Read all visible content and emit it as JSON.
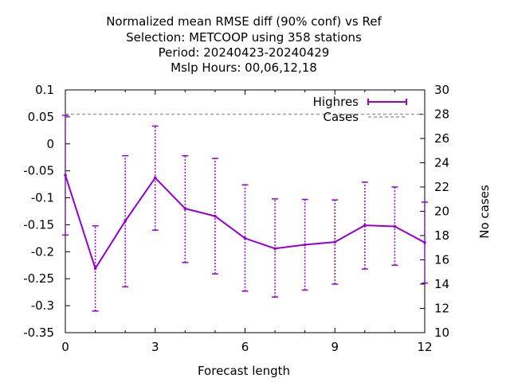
{
  "chart_data": {
    "type": "line",
    "title_lines": [
      "Normalized mean RMSE diff (90% conf) vs Ref",
      "Selection: METCOOP using   358 stations",
      "Period: 20240423-20240429",
      "Mslp   Hours:  00,06,12,18"
    ],
    "xlabel": "Forecast length",
    "ylabel": "",
    "y2label": "No cases",
    "xlim": [
      0,
      12
    ],
    "ylim": [
      -0.35,
      0.1
    ],
    "y2lim": [
      10,
      30
    ],
    "x_ticks": [
      "0",
      "3",
      "6",
      "9",
      "12"
    ],
    "y_ticks": [
      "0.1",
      "0.05",
      "0",
      "-0.05",
      "-0.1",
      "-0.15",
      "-0.2",
      "-0.25",
      "-0.3",
      "-0.35"
    ],
    "y2_ticks": [
      "30",
      "28",
      "26",
      "24",
      "22",
      "20",
      "18",
      "16",
      "14",
      "12",
      "10"
    ],
    "series": [
      {
        "name": "Highres",
        "color": "#9400d3",
        "x": [
          0,
          1,
          2,
          3,
          4,
          5,
          6,
          7,
          8,
          9,
          10,
          11,
          12
        ],
        "values": [
          -0.058,
          -0.231,
          -0.143,
          -0.063,
          -0.12,
          -0.134,
          -0.175,
          -0.194,
          -0.187,
          -0.182,
          -0.151,
          -0.153,
          -0.183
        ],
        "lower": [
          -0.169,
          -0.31,
          -0.265,
          -0.16,
          -0.22,
          -0.241,
          -0.273,
          -0.284,
          -0.271,
          -0.26,
          -0.232,
          -0.225,
          -0.258
        ],
        "upper": [
          0.053,
          -0.152,
          -0.022,
          0.033,
          -0.022,
          -0.027,
          -0.076,
          -0.102,
          -0.103,
          -0.104,
          -0.071,
          -0.08,
          -0.108
        ]
      },
      {
        "name": "Cases",
        "color": "#a0a0a0",
        "axis": "y2",
        "x": [
          0,
          1,
          2,
          3,
          4,
          5,
          6,
          7,
          8,
          9,
          10,
          11,
          12
        ],
        "values": [
          28,
          28,
          28,
          28,
          28,
          28,
          28,
          28,
          28,
          28,
          28,
          28,
          28
        ]
      }
    ],
    "legend": "top-right",
    "grid": false
  }
}
